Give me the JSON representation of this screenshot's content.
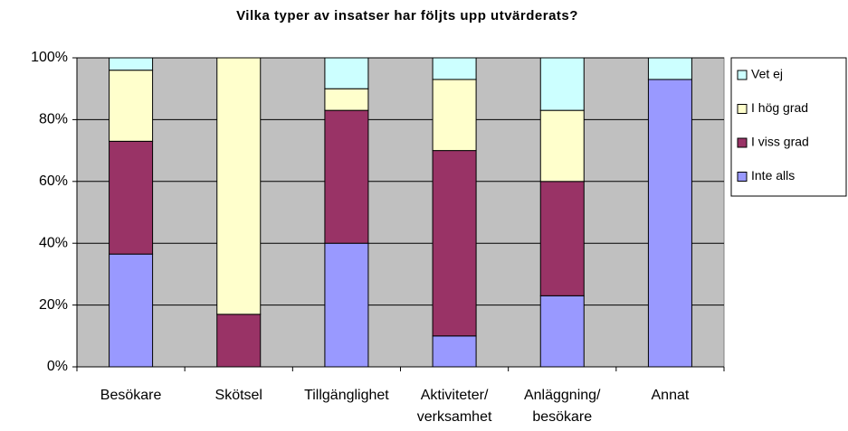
{
  "chart_data": {
    "type": "stacked_bar",
    "title": "Vilka typer av insatser har följts upp utvärderats?",
    "categories": [
      "Besökare",
      "Skötsel",
      "Tillgänglighet",
      "Aktiviteter/ verksamhet",
      "Anläggning/ besökare",
      "Annat"
    ],
    "series": [
      {
        "name": "Inte alls",
        "color": "#9999ff",
        "values": [
          36.5,
          0,
          40,
          10,
          23,
          93
        ]
      },
      {
        "name": "I viss grad",
        "color": "#993366",
        "values": [
          36.5,
          17,
          43,
          60,
          37,
          0
        ]
      },
      {
        "name": "I hög grad",
        "color": "#ffffcc",
        "values": [
          23,
          83,
          7,
          23,
          23,
          0
        ]
      },
      {
        "name": "Vet ej",
        "color": "#ccffff",
        "values": [
          4,
          0,
          10,
          7,
          17,
          7
        ]
      }
    ],
    "ylim": [
      0,
      100
    ],
    "yticks": [
      {
        "value": 0,
        "label": "0%"
      },
      {
        "value": 20,
        "label": "20%"
      },
      {
        "value": 40,
        "label": "40%"
      },
      {
        "value": 60,
        "label": "60%"
      },
      {
        "value": 80,
        "label": "80%"
      },
      {
        "value": 100,
        "label": "100%"
      }
    ],
    "grid": true
  }
}
